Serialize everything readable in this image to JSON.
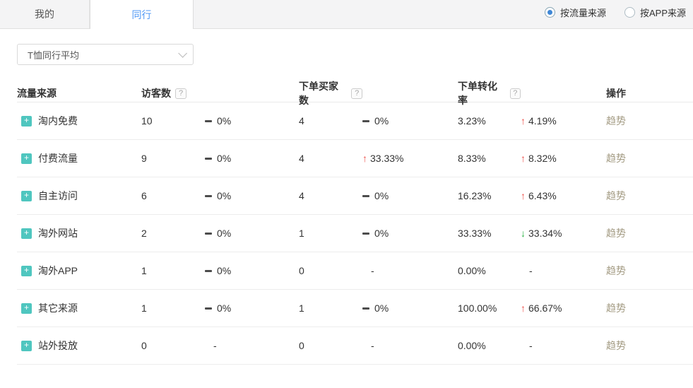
{
  "tabs": {
    "mine": "我的",
    "peers": "同行"
  },
  "radios": [
    {
      "label": "按流量来源",
      "selected": true
    },
    {
      "label": "按APP来源",
      "selected": false
    }
  ],
  "dropdown": {
    "value": "T恤同行平均"
  },
  "table": {
    "headers": {
      "source": "流量来源",
      "visitors": "访客数",
      "buyers": "下单买家数",
      "conversion": "下单转化率",
      "action": "操作"
    },
    "action_label": "趋势",
    "rows": [
      {
        "source": "淘内免费",
        "visitors": "10",
        "visitors_change": {
          "type": "flat",
          "text": "0%"
        },
        "buyers": "4",
        "buyers_change": {
          "type": "flat",
          "text": "0%"
        },
        "conversion": "3.23%",
        "conversion_change": {
          "type": "up",
          "text": "4.19%"
        },
        "action": "趋势"
      },
      {
        "source": "付费流量",
        "visitors": "9",
        "visitors_change": {
          "type": "flat",
          "text": "0%"
        },
        "buyers": "4",
        "buyers_change": {
          "type": "up",
          "text": "33.33%"
        },
        "conversion": "8.33%",
        "conversion_change": {
          "type": "up",
          "text": "8.32%"
        },
        "action": "趋势"
      },
      {
        "source": "自主访问",
        "visitors": "6",
        "visitors_change": {
          "type": "flat",
          "text": "0%"
        },
        "buyers": "4",
        "buyers_change": {
          "type": "flat",
          "text": "0%"
        },
        "conversion": "16.23%",
        "conversion_change": {
          "type": "up",
          "text": "6.43%"
        },
        "action": "趋势"
      },
      {
        "source": "淘外网站",
        "visitors": "2",
        "visitors_change": {
          "type": "flat",
          "text": "0%"
        },
        "buyers": "1",
        "buyers_change": {
          "type": "flat",
          "text": "0%"
        },
        "conversion": "33.33%",
        "conversion_change": {
          "type": "down",
          "text": "33.34%"
        },
        "action": "趋势"
      },
      {
        "source": "淘外APP",
        "visitors": "1",
        "visitors_change": {
          "type": "flat",
          "text": "0%"
        },
        "buyers": "0",
        "buyers_change": {
          "type": "none",
          "text": "-"
        },
        "conversion": "0.00%",
        "conversion_change": {
          "type": "none",
          "text": "-"
        },
        "action": "趋势"
      },
      {
        "source": "其它来源",
        "visitors": "1",
        "visitors_change": {
          "type": "flat",
          "text": "0%"
        },
        "buyers": "1",
        "buyers_change": {
          "type": "flat",
          "text": "0%"
        },
        "conversion": "100.00%",
        "conversion_change": {
          "type": "up",
          "text": "66.67%"
        },
        "action": "趋势"
      },
      {
        "source": "站外投放",
        "visitors": "0",
        "visitors_change": {
          "type": "none",
          "text": "-"
        },
        "buyers": "0",
        "buyers_change": {
          "type": "none",
          "text": "-"
        },
        "conversion": "0.00%",
        "conversion_change": {
          "type": "none",
          "text": "-"
        },
        "action": "趋势"
      }
    ]
  },
  "colors": {
    "accent_blue": "#5199f5",
    "up_red": "#ee544d",
    "down_green": "#2cb446",
    "trend_link": "#a39b83",
    "plus_icon": "#4fc6bf"
  },
  "icons": {
    "help": "?",
    "plus": "+",
    "chevron": "chevron-down"
  }
}
